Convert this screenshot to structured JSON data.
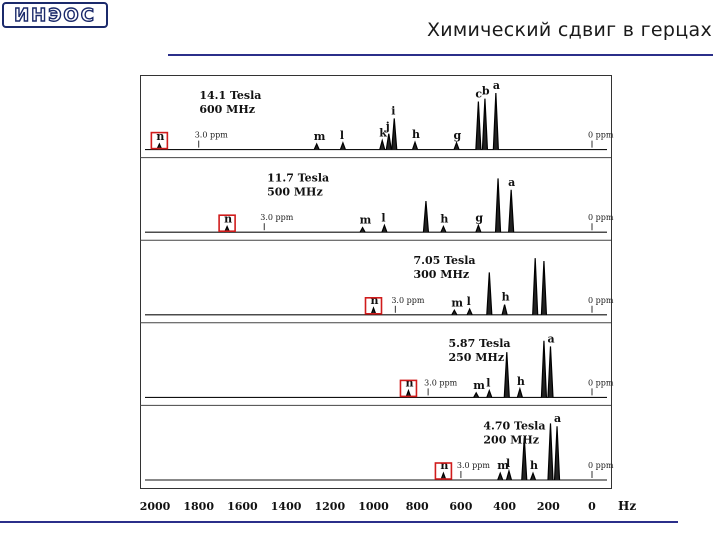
{
  "slide": {
    "title": "Химический сдвиг в герцах",
    "logo_text": "ИНЭОС",
    "accent_color": "#2b2f8a"
  },
  "chart_data": {
    "type": "line",
    "title": "",
    "xlabel": "Hz",
    "xlim": [
      2000,
      0
    ],
    "x_direction": "reversed",
    "x_ticks": [
      2000,
      1800,
      1600,
      1400,
      1200,
      1000,
      800,
      600,
      400,
      200,
      0
    ],
    "highlight_color": "#d01c1c",
    "panels": [
      {
        "field": "14.1 Tesla",
        "frequency": "600 MHz",
        "ppm_markers": [
          {
            "label": "3.0 ppm",
            "x": 1800
          },
          {
            "label": "0 ppm",
            "x": 0
          }
        ],
        "peaks": [
          {
            "label": "n",
            "x": 1980,
            "h": 0.1,
            "boxed": true
          },
          {
            "label": "m",
            "x": 1260,
            "h": 0.1
          },
          {
            "label": "l",
            "x": 1140,
            "h": 0.12
          },
          {
            "label": "k",
            "x": 960,
            "h": 0.16
          },
          {
            "label": "j",
            "x": 930,
            "h": 0.28
          },
          {
            "label": "i",
            "x": 905,
            "h": 0.55
          },
          {
            "label": "h",
            "x": 810,
            "h": 0.13
          },
          {
            "label": "g",
            "x": 620,
            "h": 0.12
          },
          {
            "label": "c",
            "x": 520,
            "h": 0.85
          },
          {
            "label": "b",
            "x": 490,
            "h": 0.9
          },
          {
            "label": "a",
            "x": 440,
            "h": 1.0
          }
        ]
      },
      {
        "field": "11.7 Tesla",
        "frequency": "500 MHz",
        "ppm_markers": [
          {
            "label": "3.0 ppm",
            "x": 1500
          },
          {
            "label": "0 ppm",
            "x": 0
          }
        ],
        "peaks": [
          {
            "label": "n",
            "x": 1670,
            "h": 0.1,
            "boxed": true
          },
          {
            "label": "m",
            "x": 1050,
            "h": 0.08
          },
          {
            "label": "l",
            "x": 950,
            "h": 0.12
          },
          {
            "label": "",
            "x": 760,
            "h": 0.55
          },
          {
            "label": "h",
            "x": 680,
            "h": 0.1
          },
          {
            "label": "g",
            "x": 520,
            "h": 0.12
          },
          {
            "label": "",
            "x": 430,
            "h": 0.95
          },
          {
            "label": "a",
            "x": 370,
            "h": 0.75
          }
        ]
      },
      {
        "field": "7.05 Tesla",
        "frequency": "300 MHz",
        "ppm_markers": [
          {
            "label": "3.0 ppm",
            "x": 900
          },
          {
            "label": "0 ppm",
            "x": 0
          }
        ],
        "peaks": [
          {
            "label": "n",
            "x": 1000,
            "h": 0.12,
            "boxed": true
          },
          {
            "label": "m",
            "x": 630,
            "h": 0.08
          },
          {
            "label": "l",
            "x": 560,
            "h": 0.1
          },
          {
            "label": "",
            "x": 470,
            "h": 0.75
          },
          {
            "label": "h",
            "x": 400,
            "h": 0.18
          },
          {
            "label": "",
            "x": 260,
            "h": 1.0
          },
          {
            "label": "",
            "x": 220,
            "h": 0.95
          }
        ]
      },
      {
        "field": "5.87 Tesla",
        "frequency": "250 MHz",
        "ppm_markers": [
          {
            "label": "3.0 ppm",
            "x": 750
          },
          {
            "label": "0 ppm",
            "x": 0
          }
        ],
        "peaks": [
          {
            "label": "n",
            "x": 840,
            "h": 0.12,
            "boxed": true
          },
          {
            "label": "m",
            "x": 530,
            "h": 0.08
          },
          {
            "label": "l",
            "x": 470,
            "h": 0.12
          },
          {
            "label": "",
            "x": 390,
            "h": 0.8
          },
          {
            "label": "h",
            "x": 330,
            "h": 0.15
          },
          {
            "label": "",
            "x": 220,
            "h": 1.0
          },
          {
            "label": "a",
            "x": 190,
            "h": 0.9
          }
        ]
      },
      {
        "field": "4.70 Tesla",
        "frequency": "200 MHz",
        "ppm_markers": [
          {
            "label": "3.0 ppm",
            "x": 600
          },
          {
            "label": "0 ppm",
            "x": 0
          }
        ],
        "peaks": [
          {
            "label": "n",
            "x": 680,
            "h": 0.12,
            "boxed": true
          },
          {
            "label": "m",
            "x": 420,
            "h": 0.12
          },
          {
            "label": "l",
            "x": 380,
            "h": 0.16
          },
          {
            "label": "",
            "x": 310,
            "h": 0.75
          },
          {
            "label": "h",
            "x": 270,
            "h": 0.12
          },
          {
            "label": "",
            "x": 190,
            "h": 1.0
          },
          {
            "label": "a",
            "x": 160,
            "h": 0.95
          }
        ]
      }
    ]
  }
}
